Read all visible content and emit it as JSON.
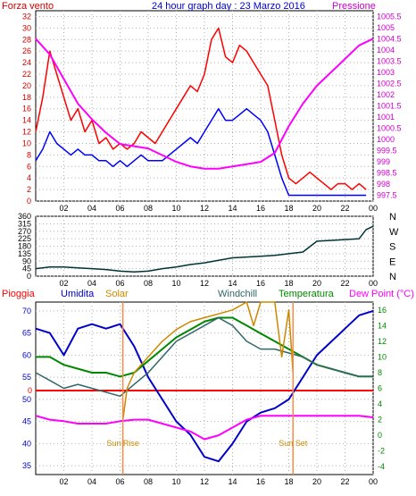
{
  "panels": {
    "wind": {
      "left_label": "Forza vento",
      "title": "24 hour graph day : 23 Marzo 2016",
      "right_label": "Pressione",
      "colors": {
        "wind": "#ff0000",
        "gust_mean": "#0000ff",
        "pressure": "#ff00ff",
        "left_axis": "#cc0000",
        "right_axis": "#cc00cc",
        "title": "#0000cc"
      }
    },
    "direction": {
      "compass": [
        "N",
        "W",
        "S",
        "E",
        "N"
      ]
    },
    "weather": {
      "labels": {
        "rain": "Pioggia",
        "humidity": "Umidita",
        "solar": "Solar",
        "windchill": "Windchill",
        "temperature": "Temperatura",
        "dewpoint": "Dew Point (°C)"
      },
      "annotations": {
        "sunrise": "Sun Rise",
        "sunset": "Sun Set"
      },
      "colors": {
        "rain": "#ff0000",
        "humidity": "#0000cc",
        "solar": "#cc8800",
        "windchill": "#336666",
        "temperature": "#008800",
        "dewpoint": "#ff00ff",
        "sunmark": "#ff8844"
      }
    }
  },
  "chart_data": [
    {
      "type": "line",
      "x_ticks": [
        "02",
        "04",
        "06",
        "08",
        "10",
        "12",
        "14",
        "16",
        "18",
        "20",
        "22",
        "00"
      ],
      "y_left_ticks": [
        0,
        2,
        4,
        6,
        8,
        10,
        12,
        14,
        16,
        18,
        20,
        22,
        24,
        26,
        28,
        30,
        32
      ],
      "y_right_ticks": [
        "997.5",
        "998",
        "998.5",
        "999",
        "999.5",
        "1000",
        "1000.5",
        "1001",
        "1001.5",
        "1002",
        "1002.5",
        "1003",
        "1003.5",
        "1004",
        "1004.5",
        "1005",
        "1005.5"
      ],
      "ylim_left": [
        0,
        33
      ],
      "ylim_right": [
        997.25,
        1005.75
      ],
      "xlim": [
        0,
        24
      ],
      "series": [
        {
          "key": "wind_gust",
          "x": [
            0,
            0.5,
            1,
            1.5,
            2,
            2.5,
            3,
            3.5,
            4,
            4.5,
            5,
            5.5,
            6,
            6.5,
            7,
            7.5,
            8,
            8.5,
            9,
            9.5,
            10,
            10.5,
            11,
            11.5,
            12,
            12.5,
            13,
            13.5,
            14,
            14.5,
            15,
            15.5,
            16,
            16.5,
            17,
            17.5,
            18,
            18.5,
            19,
            19.5,
            20,
            20.5,
            21,
            21.5,
            22,
            22.5,
            23,
            23.5
          ],
          "values": [
            12,
            18,
            26,
            22,
            18,
            14,
            16,
            12,
            14,
            10,
            11,
            9,
            10,
            9,
            10,
            12,
            11,
            10,
            12,
            14,
            16,
            18,
            20,
            19,
            22,
            28,
            30,
            25,
            24,
            27,
            26,
            24,
            22,
            20,
            14,
            8,
            4,
            3,
            4,
            5,
            4,
            3,
            2,
            3,
            3,
            2,
            3,
            2
          ]
        },
        {
          "key": "wind_mean",
          "x": [
            0,
            0.5,
            1,
            1.5,
            2,
            2.5,
            3,
            3.5,
            4,
            4.5,
            5,
            5.5,
            6,
            6.5,
            7,
            7.5,
            8,
            8.5,
            9,
            9.5,
            10,
            10.5,
            11,
            11.5,
            12,
            12.5,
            13,
            13.5,
            14,
            14.5,
            15,
            15.5,
            16,
            16.5,
            17,
            17.5,
            18,
            18.5,
            19,
            19.5,
            20,
            20.5,
            21,
            21.5,
            22,
            22.5,
            23,
            23.5
          ],
          "values": [
            7,
            9,
            12,
            10,
            9,
            8,
            9,
            8,
            8,
            7,
            7,
            6,
            7,
            6,
            7,
            8,
            7,
            7,
            7,
            8,
            9,
            10,
            11,
            10,
            12,
            14,
            16,
            14,
            14,
            15,
            16,
            15,
            14,
            12,
            8,
            4,
            1,
            1,
            1,
            1,
            1,
            1,
            1,
            1,
            1,
            1,
            1,
            1
          ]
        },
        {
          "key": "pressure",
          "x": [
            0,
            1,
            2,
            3,
            4,
            5,
            6,
            7,
            8,
            9,
            10,
            11,
            12,
            13,
            14,
            15,
            16,
            17,
            18,
            19,
            20,
            21,
            22,
            23,
            24
          ],
          "values": [
            1004.5,
            1003.8,
            1002.7,
            1001.6,
            1000.9,
            1000.3,
            999.8,
            999.7,
            999.6,
            999.3,
            999.0,
            998.8,
            998.7,
            998.7,
            998.8,
            998.9,
            999.0,
            999.4,
            1000.6,
            1001.6,
            1002.4,
            1003.0,
            1003.6,
            1004.2,
            1004.5
          ]
        }
      ]
    },
    {
      "type": "line",
      "x_ticks": [
        "02",
        "04",
        "06",
        "08",
        "10",
        "12",
        "14",
        "16",
        "18",
        "20",
        "22",
        "00"
      ],
      "y_ticks": [
        0,
        45,
        90,
        135,
        180,
        225,
        270,
        315,
        360
      ],
      "ylim": [
        0,
        360
      ],
      "xlim": [
        0,
        24
      ],
      "series": [
        {
          "key": "wind_direction",
          "x": [
            0,
            1,
            2,
            3,
            4,
            5,
            6,
            7,
            8,
            9,
            10,
            11,
            12,
            13,
            14,
            15,
            16,
            17,
            18,
            19,
            20,
            21,
            22,
            23,
            23.5,
            24
          ],
          "values": [
            45,
            55,
            55,
            50,
            45,
            40,
            30,
            25,
            30,
            45,
            55,
            70,
            80,
            95,
            110,
            115,
            120,
            125,
            135,
            145,
            210,
            215,
            220,
            225,
            280,
            300
          ]
        }
      ]
    },
    {
      "type": "line",
      "x_ticks": [
        "02",
        "04",
        "06",
        "08",
        "10",
        "12",
        "14",
        "16",
        "18",
        "20",
        "22",
        "00"
      ],
      "y_left_ticks": [
        35,
        40,
        45,
        50,
        55,
        60,
        65,
        70
      ],
      "y_right_ticks": [
        -4,
        -2,
        0,
        2,
        4,
        6,
        8,
        10,
        12,
        14,
        16
      ],
      "rain_level_label": "0",
      "ylim_left": [
        33,
        72
      ],
      "ylim_right": [
        -5,
        17
      ],
      "xlim": [
        0,
        24
      ],
      "sunrise_hour": 6.2,
      "sunset_hour": 18.3,
      "series": [
        {
          "key": "humidity",
          "axis": "left",
          "x": [
            0,
            1,
            2,
            3,
            4,
            5,
            6,
            7,
            8,
            9,
            10,
            11,
            12,
            13,
            14,
            15,
            16,
            17,
            18,
            19,
            20,
            21,
            22,
            23,
            24
          ],
          "values": [
            66,
            65,
            60,
            66,
            67,
            66,
            67,
            62,
            55,
            50,
            45,
            42,
            37,
            36,
            40,
            45,
            47,
            48,
            50,
            55,
            60,
            63,
            66,
            69,
            70
          ]
        },
        {
          "key": "temperature",
          "axis": "right",
          "x": [
            0,
            1,
            2,
            3,
            4,
            5,
            6,
            7,
            8,
            9,
            10,
            11,
            12,
            13,
            14,
            15,
            16,
            17,
            18,
            19,
            20,
            21,
            22,
            23,
            24
          ],
          "values": [
            10,
            10,
            9,
            8.5,
            8,
            8,
            7.5,
            8,
            9.5,
            11,
            12.5,
            13.5,
            14.5,
            15,
            15,
            14,
            13,
            12,
            11,
            10,
            9,
            8.5,
            8,
            7.5,
            7.5
          ]
        },
        {
          "key": "windchill",
          "axis": "right",
          "x": [
            0,
            1,
            2,
            3,
            4,
            5,
            6,
            7,
            8,
            9,
            10,
            11,
            12,
            13,
            14,
            15,
            16,
            17,
            18,
            19,
            20,
            21,
            22,
            23,
            24
          ],
          "values": [
            8,
            7,
            6,
            6.5,
            6,
            5.5,
            5,
            6.5,
            8,
            10,
            12,
            13,
            14,
            15,
            14,
            12,
            11,
            11,
            10.5,
            10,
            9,
            8.5,
            8,
            7.5,
            7.5
          ]
        },
        {
          "key": "solar",
          "axis": "right",
          "x": [
            6.2,
            6.5,
            7,
            8,
            9,
            10,
            11,
            12,
            13,
            14,
            15,
            15.5,
            16,
            17,
            17.5,
            18,
            18.3
          ],
          "values": [
            2,
            6,
            8,
            10,
            12,
            13.5,
            14.5,
            15,
            15.5,
            16,
            17,
            14,
            17,
            17,
            10,
            16,
            8
          ]
        },
        {
          "key": "dewpoint",
          "axis": "right",
          "x": [
            0,
            1,
            2,
            3,
            4,
            5,
            6,
            7,
            8,
            9,
            10,
            11,
            12,
            13,
            14,
            15,
            16,
            17,
            18,
            19,
            20,
            21,
            22,
            23,
            24
          ],
          "values": [
            2.5,
            2,
            1.8,
            1.5,
            1.5,
            1.5,
            1.8,
            2,
            2,
            1.5,
            1,
            0.5,
            -0.5,
            0,
            1,
            2,
            2.5,
            2.5,
            2.5,
            2.5,
            2.5,
            2.5,
            2.5,
            2.5,
            2.3
          ]
        }
      ]
    }
  ]
}
